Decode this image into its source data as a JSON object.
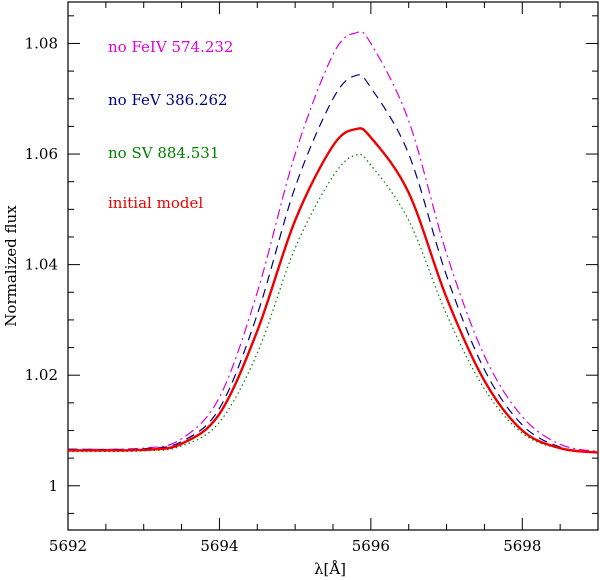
{
  "chart_data": {
    "type": "line",
    "title": "",
    "xlabel": "λ[Å]",
    "ylabel": "Normalized flux",
    "xlim": [
      5692,
      5699
    ],
    "ylim": [
      0.992,
      1.0875
    ],
    "xticks": [
      5692,
      5694,
      5696,
      5698
    ],
    "yticks": [
      1,
      1.02,
      1.04,
      1.06,
      1.08
    ],
    "xtick_labels": [
      "5692",
      "5694",
      "5696",
      "5698"
    ],
    "ytick_labels": [
      "1",
      "1.02",
      "1.04",
      "1.06",
      "1.08"
    ],
    "grid": false,
    "legend_position": "top-left",
    "series": [
      {
        "name": "no FeIV 574.232",
        "color": "#dd00dd",
        "dash": "dashdot",
        "width": 1.2,
        "x": [
          5692,
          5693,
          5693.5,
          5694,
          5694.5,
          5695,
          5695.5,
          5695.8,
          5696,
          5696.5,
          5697,
          5697.5,
          5698,
          5698.5,
          5699
        ],
        "y": [
          1.0066,
          1.0068,
          1.0085,
          1.016,
          1.035,
          1.06,
          1.078,
          1.0819,
          1.08,
          1.066,
          1.042,
          1.0235,
          1.0125,
          1.0075,
          1.0062
        ]
      },
      {
        "name": "no FeV 386.262",
        "color": "#000080",
        "dash": "dashed",
        "width": 1.2,
        "x": [
          5692,
          5693,
          5693.5,
          5694,
          5694.5,
          5695,
          5695.5,
          5695.8,
          5696,
          5696.5,
          5697,
          5697.5,
          5698,
          5698.5,
          5699
        ],
        "y": [
          1.0066,
          1.0067,
          1.008,
          1.014,
          1.031,
          1.054,
          1.07,
          1.0742,
          1.072,
          1.06,
          1.038,
          1.021,
          1.011,
          1.007,
          1.006
        ]
      },
      {
        "name": "no SV 884.531",
        "color": "#008000",
        "dash": "dotted",
        "width": 1.2,
        "x": [
          5692,
          5693,
          5693.5,
          5694,
          5694.5,
          5695,
          5695.5,
          5695.8,
          5696,
          5696.5,
          5697,
          5697.5,
          5698,
          5698.5,
          5699
        ],
        "y": [
          1.0062,
          1.0063,
          1.0072,
          1.0115,
          1.024,
          1.043,
          1.056,
          1.0598,
          1.058,
          1.048,
          1.031,
          1.0175,
          1.0095,
          1.0067,
          1.006
        ]
      },
      {
        "name": "initial model",
        "color": "#ee0000",
        "dash": "solid",
        "width": 2.4,
        "x": [
          5692,
          5693,
          5693.5,
          5694,
          5694.5,
          5695,
          5695.5,
          5695.8,
          5696,
          5696.5,
          5697,
          5697.5,
          5698,
          5698.5,
          5699
        ],
        "y": [
          1.0064,
          1.0065,
          1.0076,
          1.013,
          1.028,
          1.048,
          1.0615,
          1.0645,
          1.063,
          1.053,
          1.034,
          1.019,
          1.01,
          1.0068,
          1.006
        ]
      }
    ],
    "legend": [
      {
        "label": "no FeIV 574.232",
        "color": "#dd00dd"
      },
      {
        "label": "no FeV 386.262",
        "color": "#000080"
      },
      {
        "label": "no SV 884.531",
        "color": "#008000"
      },
      {
        "label": "initial model",
        "color": "#ee0000"
      }
    ]
  }
}
